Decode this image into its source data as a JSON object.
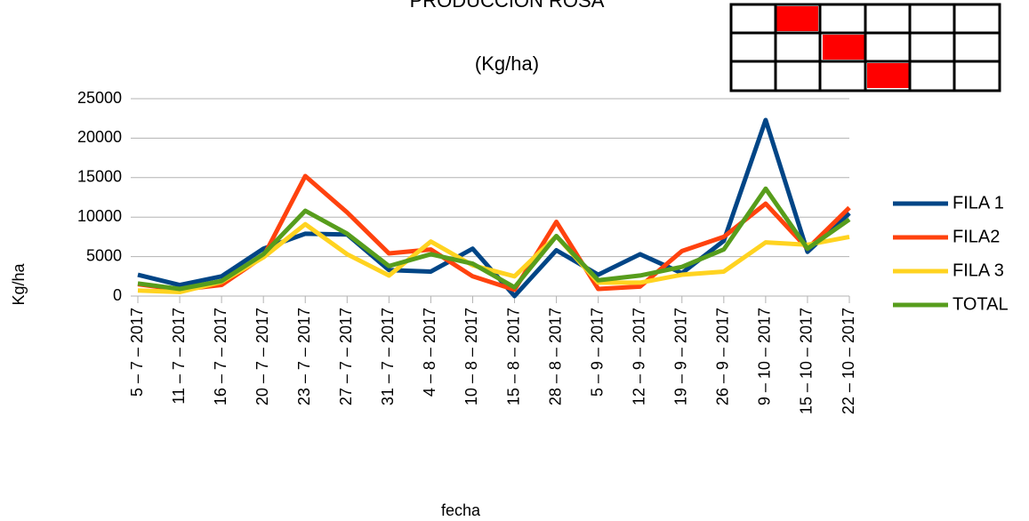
{
  "chart_data": {
    "type": "line",
    "title": "PRODUCCION ROSA",
    "subtitle": "(Kg/ha)",
    "x_label": "fecha",
    "y_label": "Kg/ha",
    "categories": [
      "5 – 7 – 2017",
      "11 – 7 – 2017",
      "16 – 7 – 2017",
      "20 – 7 – 2017",
      "23 – 7 – 2017",
      "27 – 7 – 2017",
      "31 – 7 – 2017",
      "4 – 8 – 2017",
      "10 – 8 – 2017",
      "15 – 8 – 2017",
      "28 – 8 – 2017",
      "5 – 9 – 2017",
      "12 – 9 – 2017",
      "19 – 9 – 2017",
      "26 – 9 – 2017",
      "9 – 10 – 2017",
      "15 – 10 – 2017",
      "22 – 10 – 2017"
    ],
    "series": [
      {
        "name": "FILA 1",
        "color": "#004586",
        "values": [
          2700,
          1400,
          2500,
          6000,
          7900,
          7800,
          3300,
          3100,
          6000,
          0,
          5800,
          2700,
          5300,
          2900,
          7000,
          22300,
          5600,
          10500
        ]
      },
      {
        "name": "FILA2",
        "color": "#ff420e",
        "values": [
          1500,
          800,
          1400,
          5000,
          15200,
          10600,
          5400,
          5900,
          2500,
          800,
          9400,
          900,
          1200,
          5700,
          7500,
          11700,
          6000,
          11200
        ]
      },
      {
        "name": "FILA 3",
        "color": "#ffd320",
        "values": [
          700,
          500,
          1800,
          4900,
          9100,
          5300,
          2600,
          6900,
          3900,
          2500,
          7600,
          1700,
          1700,
          2700,
          3100,
          6800,
          6500,
          7500
        ]
      },
      {
        "name": "TOTAL",
        "color": "#579d1c",
        "values": [
          1600,
          900,
          1900,
          5300,
          10800,
          7900,
          3800,
          5300,
          4100,
          1100,
          7600,
          2000,
          2600,
          3700,
          5900,
          13600,
          6000,
          9700
        ]
      }
    ],
    "ylim": [
      0,
      25000
    ],
    "yticks": [
      0,
      5000,
      10000,
      15000,
      20000,
      25000
    ],
    "grid": true,
    "legend": "right"
  }
}
